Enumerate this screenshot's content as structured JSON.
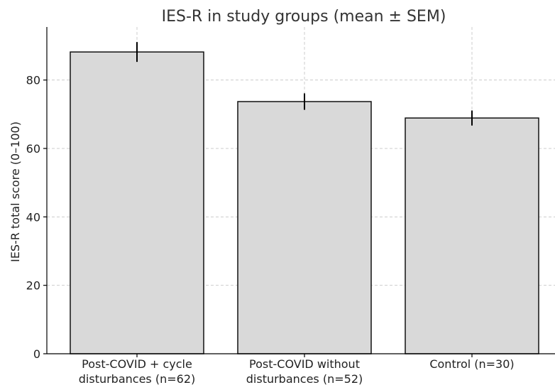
{
  "chart_data": {
    "type": "bar",
    "title": "IES-R in study groups (mean ± SEM)",
    "xlabel": "",
    "ylabel": "IES-R total score (0–100)",
    "categories": [
      [
        "Post-COVID + cycle",
        "disturbances (n=62)"
      ],
      [
        "Post-COVID without",
        "disturbances (n=52)"
      ],
      [
        "Control (n=30)"
      ]
    ],
    "values": [
      88.2,
      73.7,
      68.9
    ],
    "errors": [
      2.9,
      2.4,
      2.2
    ],
    "ylim": [
      0,
      95.5
    ],
    "yticks": [
      0,
      20,
      40,
      60,
      80
    ],
    "grid": true,
    "bar_color": "#d9d9d9"
  }
}
